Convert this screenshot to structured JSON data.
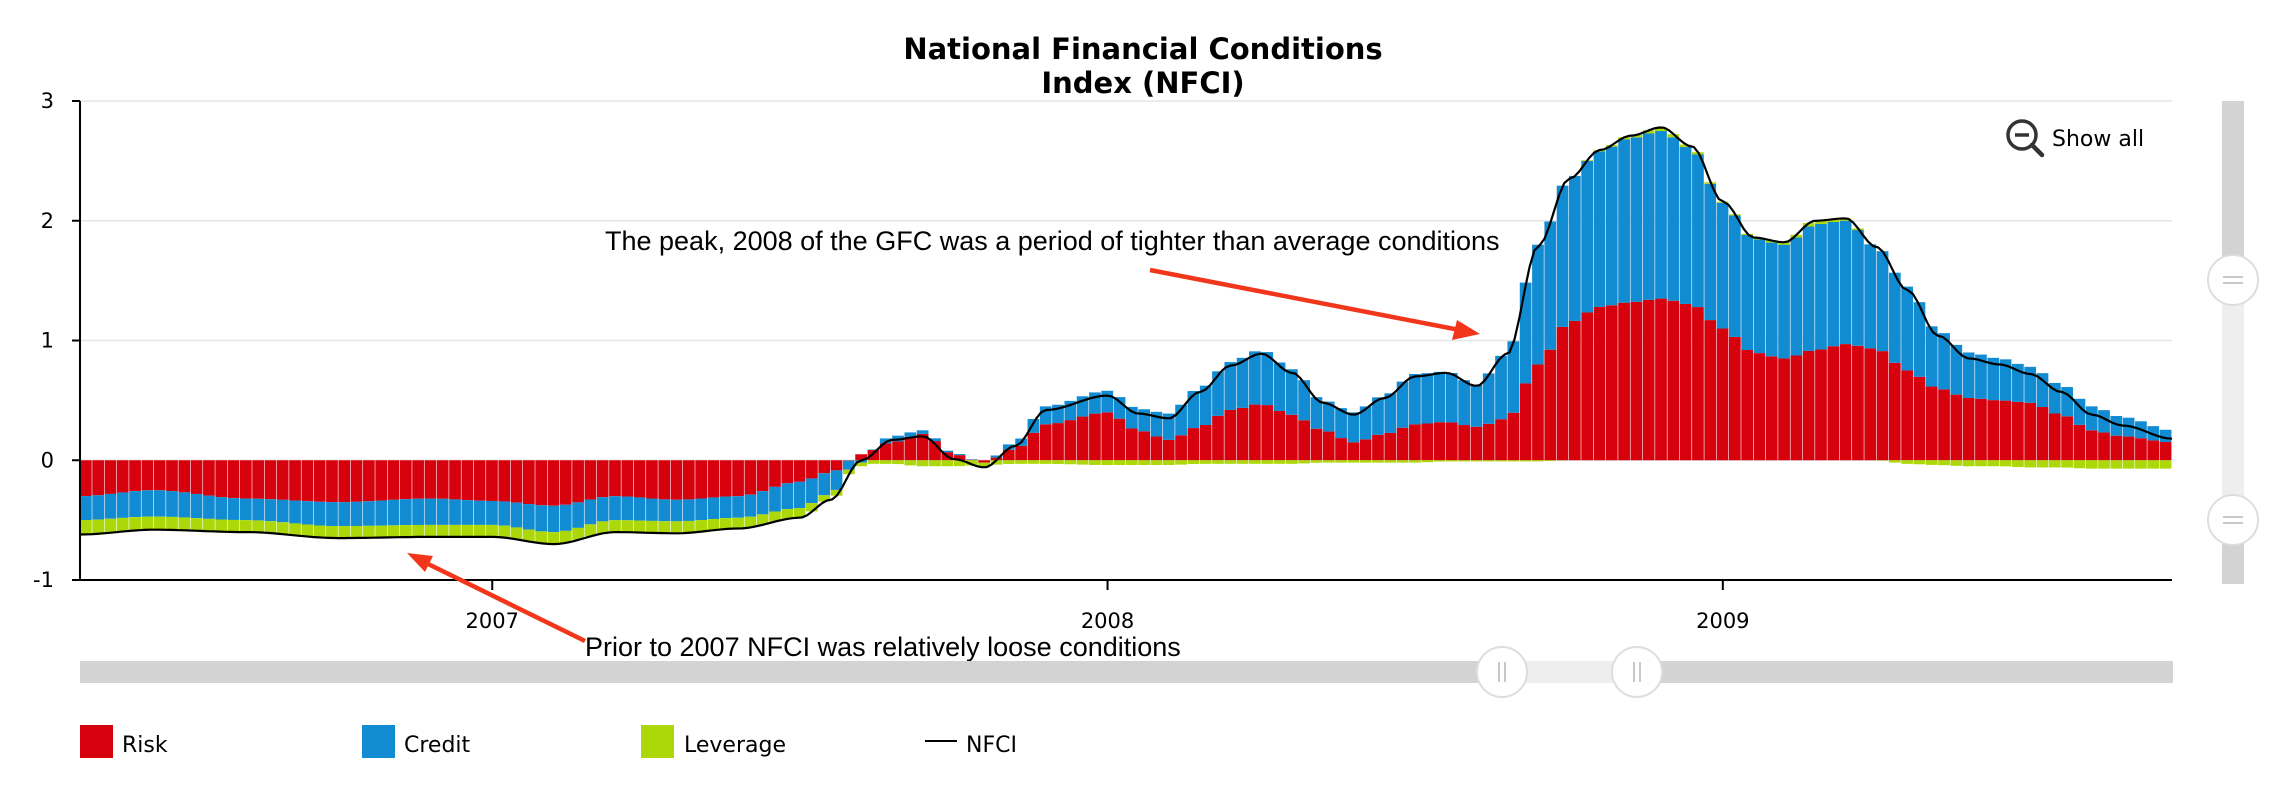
{
  "chart_data": {
    "type": "bar",
    "stacked": true,
    "title": "National Financial Conditions\nIndex (NFCI)",
    "title_lines": [
      "National Financial Conditions",
      "Index (NFCI)"
    ],
    "ylim": [
      -1,
      3
    ],
    "yticks": [
      -1,
      0,
      1,
      2,
      3
    ],
    "ytick_labels": [
      "-1",
      "0",
      "1",
      "2",
      "3"
    ],
    "xlim": [
      2006.33,
      2009.73
    ],
    "xticks": [
      2007,
      2008,
      2009
    ],
    "xtick_labels": [
      "2007",
      "2008",
      "2009"
    ],
    "grid": true,
    "x": [
      2006.33,
      2006.45,
      2006.6,
      2006.75,
      2006.9,
      2007.0,
      2007.1,
      2007.2,
      2007.3,
      2007.4,
      2007.5,
      2007.55,
      2007.6,
      2007.65,
      2007.7,
      2007.75,
      2007.8,
      2007.85,
      2007.9,
      2008.0,
      2008.05,
      2008.1,
      2008.15,
      2008.2,
      2008.25,
      2008.3,
      2008.35,
      2008.4,
      2008.45,
      2008.5,
      2008.55,
      2008.6,
      2008.65,
      2008.7,
      2008.75,
      2008.8,
      2008.85,
      2008.9,
      2008.95,
      2009.0,
      2009.05,
      2009.1,
      2009.15,
      2009.2,
      2009.25,
      2009.3,
      2009.35,
      2009.4,
      2009.45,
      2009.5,
      2009.55,
      2009.6,
      2009.65,
      2009.73
    ],
    "series": [
      {
        "name": "Risk",
        "color": "#d7000d",
        "values": [
          -0.3,
          -0.25,
          -0.32,
          -0.35,
          -0.32,
          -0.34,
          -0.38,
          -0.3,
          -0.33,
          -0.3,
          -0.18,
          -0.1,
          0.05,
          0.15,
          0.22,
          0.05,
          -0.02,
          0.1,
          0.3,
          0.4,
          0.25,
          0.17,
          0.28,
          0.42,
          0.47,
          0.38,
          0.25,
          0.15,
          0.22,
          0.3,
          0.32,
          0.28,
          0.35,
          0.8,
          1.15,
          1.28,
          1.32,
          1.35,
          1.3,
          1.1,
          0.9,
          0.85,
          0.92,
          0.97,
          0.93,
          0.75,
          0.6,
          0.52,
          0.5,
          0.48,
          0.38,
          0.25,
          0.2,
          0.15
        ]
      },
      {
        "name": "Credit",
        "color": "#118bd1",
        "values": [
          -0.2,
          -0.22,
          -0.18,
          -0.2,
          -0.22,
          -0.2,
          -0.22,
          -0.2,
          -0.18,
          -0.18,
          -0.22,
          -0.18,
          -0.02,
          0.05,
          0.03,
          0.01,
          0.0,
          0.05,
          0.15,
          0.18,
          0.18,
          0.22,
          0.32,
          0.4,
          0.45,
          0.38,
          0.25,
          0.25,
          0.32,
          0.42,
          0.42,
          0.35,
          0.55,
          1.0,
          1.2,
          1.3,
          1.37,
          1.4,
          1.3,
          1.05,
          0.95,
          0.95,
          1.05,
          1.03,
          0.85,
          0.7,
          0.48,
          0.38,
          0.35,
          0.3,
          0.25,
          0.2,
          0.16,
          0.1
        ]
      },
      {
        "name": "Leverage",
        "color": "#acd80a",
        "values": [
          -0.12,
          -0.11,
          -0.1,
          -0.1,
          -0.1,
          -0.1,
          -0.1,
          -0.1,
          -0.1,
          -0.09,
          -0.08,
          -0.05,
          -0.03,
          -0.03,
          -0.05,
          -0.05,
          -0.04,
          -0.03,
          -0.03,
          -0.04,
          -0.04,
          -0.04,
          -0.03,
          -0.03,
          -0.03,
          -0.03,
          -0.02,
          -0.02,
          -0.02,
          -0.02,
          -0.01,
          -0.01,
          -0.01,
          -0.01,
          0.0,
          0.01,
          0.02,
          0.03,
          0.02,
          0.01,
          0.01,
          0.02,
          0.03,
          0.02,
          0.0,
          -0.03,
          -0.04,
          -0.05,
          -0.05,
          -0.06,
          -0.06,
          -0.07,
          -0.07,
          -0.07
        ]
      },
      {
        "name": "NFCI",
        "color": "#000000",
        "type": "line",
        "values": [
          -0.62,
          -0.58,
          -0.6,
          -0.65,
          -0.64,
          -0.64,
          -0.7,
          -0.6,
          -0.61,
          -0.57,
          -0.48,
          -0.33,
          0.0,
          0.17,
          0.2,
          0.01,
          -0.06,
          0.12,
          0.42,
          0.54,
          0.39,
          0.35,
          0.57,
          0.79,
          0.89,
          0.73,
          0.48,
          0.38,
          0.52,
          0.7,
          0.73,
          0.62,
          0.89,
          1.79,
          2.35,
          2.59,
          2.71,
          2.78,
          2.62,
          2.16,
          1.86,
          1.82,
          2.0,
          2.02,
          1.78,
          1.42,
          1.04,
          0.85,
          0.8,
          0.72,
          0.57,
          0.38,
          0.29,
          0.18
        ]
      }
    ],
    "annotations": [
      {
        "text": "The peak, 2008 of the GFC was a period of tighter than average conditions",
        "arrow_to": [
          2008.6,
          1.05
        ]
      },
      {
        "text": "Prior to 2007 NFCI was relatively loose conditions",
        "arrow_to": [
          2006.9,
          -0.78
        ]
      }
    ],
    "legend": [
      "Risk",
      "Credit",
      "Leverage",
      "NFCI"
    ],
    "legend_position": "bottom-left"
  },
  "controls": {
    "show_all_label": "Show all",
    "zoom_icon": "zoom-out-icon"
  },
  "colors": {
    "risk": "#d7000d",
    "credit": "#118bd1",
    "leverage": "#acd80a",
    "nfci": "#000000",
    "scrollbar": "#d3d3d3"
  }
}
